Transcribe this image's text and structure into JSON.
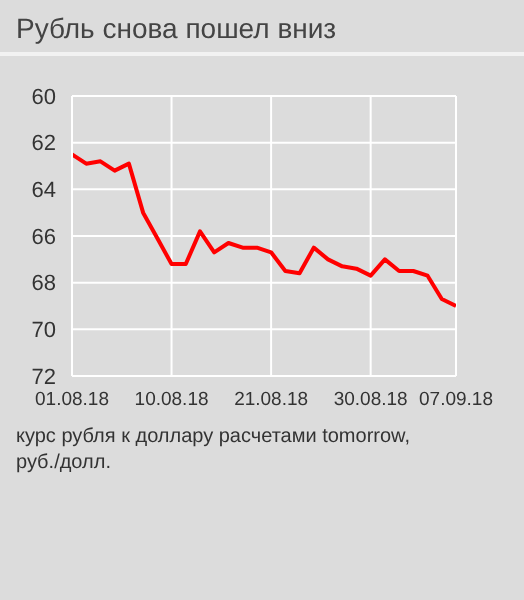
{
  "chart_data": {
    "type": "line",
    "title": "Рубль снова пошел вниз",
    "categories": [
      "01.08.18",
      null,
      null,
      null,
      null,
      null,
      null,
      "10.08.18",
      null,
      null,
      null,
      null,
      null,
      null,
      "21.08.18",
      null,
      null,
      null,
      null,
      null,
      null,
      "30.08.18",
      null,
      null,
      null,
      null,
      null,
      "07.09.18"
    ],
    "series": [
      {
        "color": "#ff0000",
        "values": [
          62.5,
          62.9,
          62.8,
          63.2,
          62.9,
          65.0,
          66.1,
          67.2,
          67.2,
          65.8,
          66.7,
          66.3,
          66.5,
          66.5,
          66.7,
          67.5,
          67.6,
          66.5,
          67.0,
          67.3,
          67.4,
          67.7,
          67.0,
          67.5,
          67.5,
          67.7,
          68.7,
          69.0
        ]
      }
    ],
    "ylim": [
      72,
      60
    ],
    "yticks": [
      60,
      62,
      64,
      66,
      68,
      70,
      72
    ],
    "grid": true,
    "legend": false,
    "marker": "none",
    "line_style": "solid",
    "annotations": [
      "курс рубля к доллару расчетами tomorrow, руб./долл."
    ]
  }
}
